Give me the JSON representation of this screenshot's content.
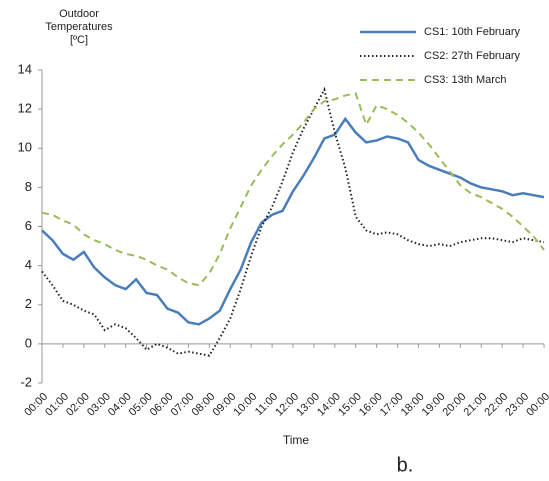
{
  "chart_data": {
    "type": "line",
    "y_label": "Outdoor Temperatures [ºC]",
    "x_label": "Time",
    "annotation": "b.",
    "xlim": [
      0,
      24
    ],
    "ylim": [
      -2,
      14
    ],
    "yticks": [
      -2,
      0,
      2,
      4,
      6,
      8,
      10,
      12,
      14
    ],
    "xticks": [
      {
        "value": 0,
        "label": "00:00"
      },
      {
        "value": 1,
        "label": "01:00"
      },
      {
        "value": 2,
        "label": "02:00"
      },
      {
        "value": 3,
        "label": "03:00"
      },
      {
        "value": 4,
        "label": "04:00"
      },
      {
        "value": 5,
        "label": "05:00"
      },
      {
        "value": 6,
        "label": "06:00"
      },
      {
        "value": 7,
        "label": "07:00"
      },
      {
        "value": 8,
        "label": "08:00"
      },
      {
        "value": 9,
        "label": "09:00"
      },
      {
        "value": 10,
        "label": "10:00"
      },
      {
        "value": 11,
        "label": "11:00"
      },
      {
        "value": 12,
        "label": "12:00"
      },
      {
        "value": 13,
        "label": "13:00"
      },
      {
        "value": 14,
        "label": "14:00"
      },
      {
        "value": 15,
        "label": "15:00"
      },
      {
        "value": 16,
        "label": "16:00"
      },
      {
        "value": 17,
        "label": "17:00"
      },
      {
        "value": 18,
        "label": "18:00"
      },
      {
        "value": 19,
        "label": "19:00"
      },
      {
        "value": 20,
        "label": "20:00"
      },
      {
        "value": 21,
        "label": "21:00"
      },
      {
        "value": 22,
        "label": "22:00"
      },
      {
        "value": 23,
        "label": "23:00"
      },
      {
        "value": 24,
        "label": "00:00"
      }
    ],
    "grid": false,
    "legend": "top-right",
    "x": [
      0,
      0.5,
      1,
      1.5,
      2,
      2.5,
      3,
      3.5,
      4,
      4.5,
      5,
      5.5,
      6,
      6.5,
      7,
      7.5,
      8,
      8.5,
      9,
      9.5,
      10,
      10.5,
      11,
      11.5,
      12,
      12.5,
      13,
      13.5,
      14,
      14.5,
      15,
      15.5,
      16,
      16.5,
      17,
      17.5,
      18,
      18.5,
      19,
      19.5,
      20,
      20.5,
      21,
      21.5,
      22,
      22.5,
      23,
      23.5,
      24
    ],
    "series": [
      {
        "name": "CS1: 10th February",
        "color": "#4a7ebb",
        "style": "solid",
        "values": [
          5.8,
          5.3,
          4.6,
          4.3,
          4.7,
          3.9,
          3.4,
          3.0,
          2.8,
          3.3,
          2.6,
          2.5,
          1.8,
          1.6,
          1.1,
          1.0,
          1.3,
          1.7,
          2.8,
          3.8,
          5.2,
          6.2,
          6.6,
          6.8,
          7.8,
          8.6,
          9.5,
          10.5,
          10.7,
          11.5,
          10.8,
          10.3,
          10.4,
          10.6,
          10.5,
          10.3,
          9.4,
          9.1,
          8.9,
          8.7,
          8.5,
          8.2,
          8.0,
          7.9,
          7.8,
          7.6,
          7.7,
          7.6,
          7.5
        ]
      },
      {
        "name": "CS2: 27th February",
        "color": "#222222",
        "style": "dotted",
        "values": [
          3.7,
          3.0,
          2.2,
          2.0,
          1.7,
          1.5,
          0.7,
          1.0,
          0.8,
          0.3,
          -0.3,
          0.0,
          -0.2,
          -0.5,
          -0.4,
          -0.5,
          -0.6,
          0.3,
          1.3,
          2.8,
          4.5,
          6.0,
          7.0,
          8.3,
          9.8,
          11.0,
          12.0,
          13.0,
          10.8,
          9.0,
          6.5,
          5.8,
          5.6,
          5.7,
          5.6,
          5.3,
          5.1,
          5.0,
          5.1,
          5.0,
          5.2,
          5.3,
          5.4,
          5.4,
          5.3,
          5.2,
          5.4,
          5.3,
          5.2
        ]
      },
      {
        "name": "CS3: 13th March",
        "color": "#9bbb59",
        "style": "dashed",
        "values": [
          6.7,
          6.6,
          6.3,
          6.1,
          5.6,
          5.3,
          5.1,
          4.8,
          4.6,
          4.5,
          4.3,
          4.0,
          3.8,
          3.4,
          3.1,
          3.0,
          3.6,
          4.6,
          5.9,
          7.0,
          8.1,
          8.9,
          9.6,
          10.2,
          10.7,
          11.3,
          12.0,
          12.4,
          12.5,
          12.7,
          12.8,
          11.2,
          12.2,
          12.0,
          11.7,
          11.3,
          10.8,
          10.2,
          9.5,
          8.8,
          8.1,
          7.7,
          7.5,
          7.2,
          6.9,
          6.5,
          6.0,
          5.5,
          4.8
        ]
      }
    ]
  }
}
